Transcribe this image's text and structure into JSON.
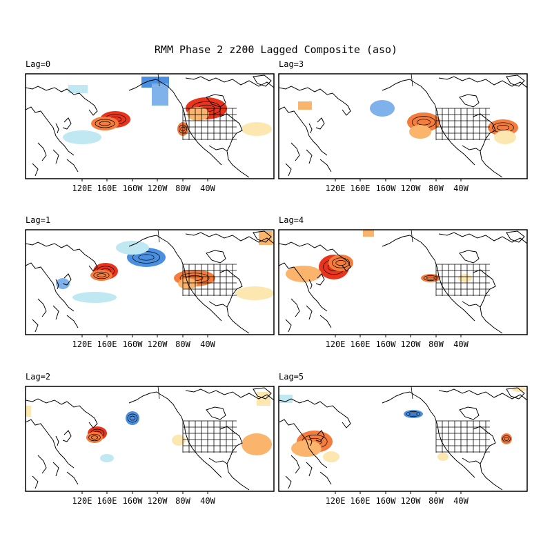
{
  "figure": {
    "title": "RMM Phase 2 z200 Lagged Composite (aso)"
  },
  "lon_ticks": [
    "120E",
    "160E",
    "160W",
    "120W",
    "80W",
    "40W"
  ],
  "colors": {
    "positive_strong": "#e8341c",
    "positive_mid": "#f47c3c",
    "positive_weak": "#fbb46c",
    "positive_faint": "#fde7b0",
    "negative_strong": "#4a8fe0",
    "negative_mid": "#7fb2ea",
    "negative_faint": "#bfe8f2",
    "coast": "#000000"
  },
  "panels": [
    {
      "id": "lag0",
      "label": "Lag=0"
    },
    {
      "id": "lag3",
      "label": "Lag=3"
    },
    {
      "id": "lag1",
      "label": "Lag=1"
    },
    {
      "id": "lag4",
      "label": "Lag=4"
    },
    {
      "id": "lag2",
      "label": "Lag=2"
    },
    {
      "id": "lag5",
      "label": "Lag=5"
    }
  ]
}
